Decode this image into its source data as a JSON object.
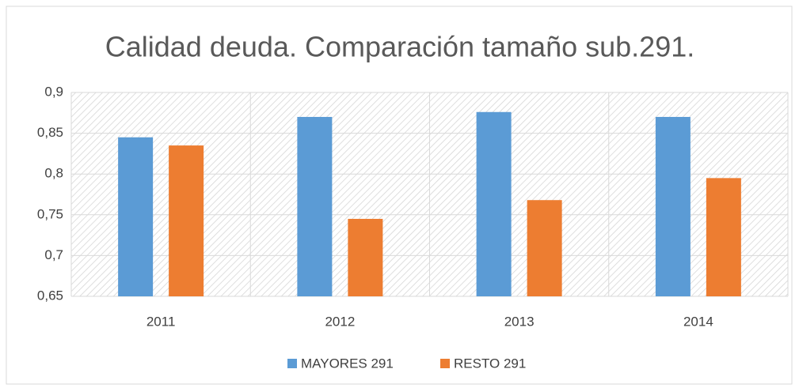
{
  "chart_data": {
    "type": "bar",
    "title": "Calidad deuda. Comparación tamaño sub.291.",
    "categories": [
      "2011",
      "2012",
      "2013",
      "2014"
    ],
    "series": [
      {
        "name": "MAYORES 291",
        "color": "#5b9bd5",
        "values": [
          0.845,
          0.87,
          0.876,
          0.87
        ]
      },
      {
        "name": "RESTO 291",
        "color": "#ed7d31",
        "values": [
          0.835,
          0.745,
          0.768,
          0.795
        ]
      }
    ],
    "ylim": [
      0.65,
      0.9
    ],
    "yticks": [
      {
        "value": 0.65,
        "label": "0,65"
      },
      {
        "value": 0.7,
        "label": "0,7"
      },
      {
        "value": 0.75,
        "label": "0,75"
      },
      {
        "value": 0.8,
        "label": "0,8"
      },
      {
        "value": 0.85,
        "label": "0,85"
      },
      {
        "value": 0.9,
        "label": "0,9"
      }
    ],
    "grid": true,
    "legend": "bottom"
  }
}
